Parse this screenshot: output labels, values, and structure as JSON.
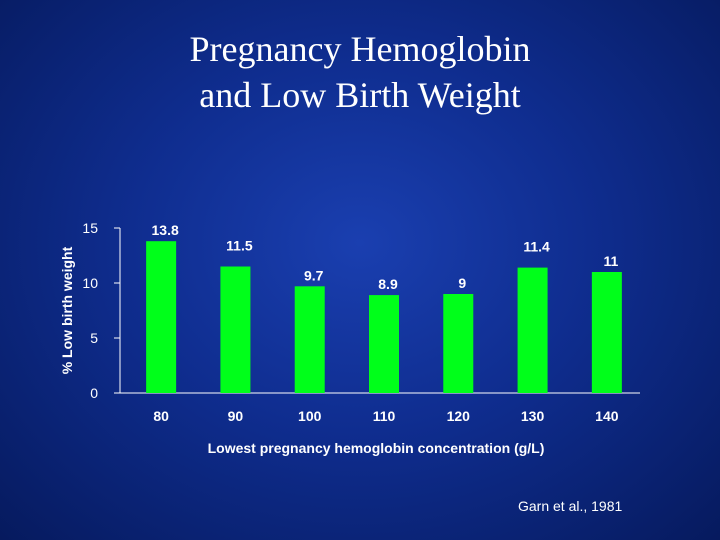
{
  "slide": {
    "title_line1": "Pregnancy Hemoglobin",
    "title_line2": "and Low Birth Weight",
    "citation": "Garn et al., 1981"
  },
  "colors": {
    "bar": "#00ff1a",
    "text": "#ffffff",
    "axis": "#ffffff"
  },
  "chart_data": {
    "type": "bar",
    "categories": [
      "80",
      "90",
      "100",
      "110",
      "120",
      "130",
      "140"
    ],
    "values": [
      13.8,
      11.5,
      9.7,
      8.9,
      9,
      11.4,
      11
    ],
    "value_labels": [
      "13.8",
      "11.5",
      "9.7",
      "8.9",
      "9",
      "11.4",
      "11"
    ],
    "xlabel": "Lowest pregnancy hemoglobin concentration (g/L)",
    "ylabel": "% Low birth weight",
    "ylim": [
      0,
      15
    ],
    "yticks": [
      0,
      5,
      10,
      15
    ],
    "grid": false,
    "legend": "none"
  }
}
